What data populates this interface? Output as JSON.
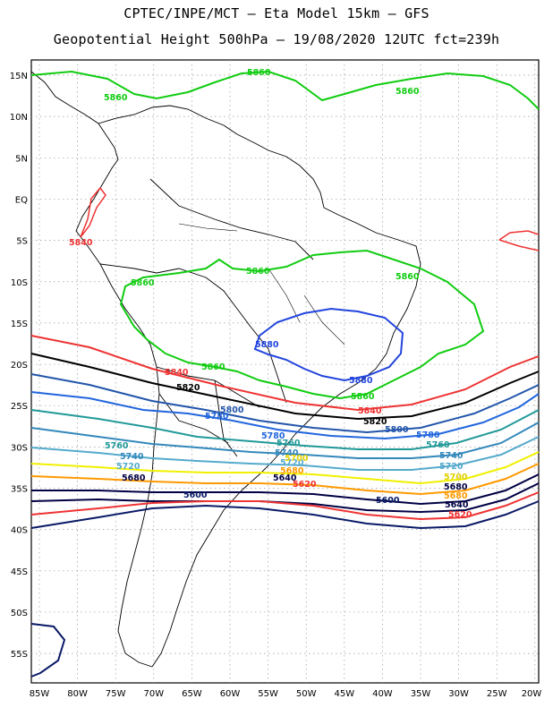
{
  "header": {
    "line1": "CPTEC/INPE/MCT –  Eta Model 15km – GFS",
    "line2": "Geopotential Height 500hPa – 19/08/2020 12UTC fct=239h"
  },
  "axes": {
    "lat_labels": [
      "15N",
      "10N",
      "5N",
      "EQ",
      "5S",
      "10S",
      "15S",
      "20S",
      "25S",
      "30S",
      "35S",
      "40S",
      "45S",
      "50S",
      "55S"
    ],
    "lon_labels": [
      "85W",
      "80W",
      "75W",
      "70W",
      "65W",
      "60W",
      "55W",
      "50W",
      "45W",
      "40W",
      "35W",
      "30W",
      "25W",
      "20W"
    ]
  },
  "colors": {
    "c5880": "#2244dd",
    "c5860": "#11cc11",
    "c5840": "#ee3333",
    "c5820": "#000000",
    "c5800": "#2255aa",
    "c5780": "#2266dd",
    "c5760": "#229999",
    "c5740": "#3388bb",
    "c5720": "#55aacc",
    "c5700": "#f0f000",
    "c5680": "#ff9900",
    "c5640": "#000044",
    "c5600": "#0a1a66",
    "land": "#000000",
    "grid": "#999999"
  },
  "contour_labels": [
    {
      "text": "5860",
      "color": "#11cc11"
    },
    {
      "text": "5860",
      "color": "#11cc11"
    },
    {
      "text": "5860",
      "color": "#11cc11"
    },
    {
      "text": "5860",
      "color": "#11cc11"
    },
    {
      "text": "5860",
      "color": "#11cc11"
    },
    {
      "text": "5860",
      "color": "#11cc11"
    },
    {
      "text": "5860",
      "color": "#11cc11"
    },
    {
      "text": "5860",
      "color": "#11cc11"
    },
    {
      "text": "5880",
      "color": "#2244dd"
    },
    {
      "text": "5880",
      "color": "#2244dd"
    },
    {
      "text": "5840",
      "color": "#ee3333"
    },
    {
      "text": "5840",
      "color": "#ee3333"
    },
    {
      "text": "5840",
      "color": "#ee3333"
    },
    {
      "text": "5820",
      "color": "#000000"
    },
    {
      "text": "5820",
      "color": "#000000"
    },
    {
      "text": "5800",
      "color": "#2255aa"
    },
    {
      "text": "5800",
      "color": "#2255aa"
    },
    {
      "text": "5780",
      "color": "#2266dd"
    },
    {
      "text": "5780",
      "color": "#2266dd"
    },
    {
      "text": "5780",
      "color": "#2266dd"
    },
    {
      "text": "5760",
      "color": "#229999"
    },
    {
      "text": "5760",
      "color": "#229999"
    },
    {
      "text": "5760",
      "color": "#229999"
    },
    {
      "text": "5740",
      "color": "#3388bb"
    },
    {
      "text": "5740",
      "color": "#3388bb"
    },
    {
      "text": "5740",
      "color": "#3388bb"
    },
    {
      "text": "5720",
      "color": "#55aacc"
    },
    {
      "text": "5720",
      "color": "#55aacc"
    },
    {
      "text": "5720",
      "color": "#55aacc"
    },
    {
      "text": "5700",
      "color": "#e0d000"
    },
    {
      "text": "5700",
      "color": "#e0d000"
    },
    {
      "text": "5680",
      "color": "#ff9900"
    },
    {
      "text": "5680",
      "color": "#000044"
    },
    {
      "text": "5680",
      "color": "#000044"
    },
    {
      "text": "5680",
      "color": "#ff9900"
    },
    {
      "text": "5640",
      "color": "#000044"
    },
    {
      "text": "5640",
      "color": "#000044"
    },
    {
      "text": "5620",
      "color": "#ee3333"
    },
    {
      "text": "5620",
      "color": "#ee3333"
    },
    {
      "text": "5600",
      "color": "#0a1a66"
    },
    {
      "text": "5600",
      "color": "#0a1a66"
    }
  ]
}
